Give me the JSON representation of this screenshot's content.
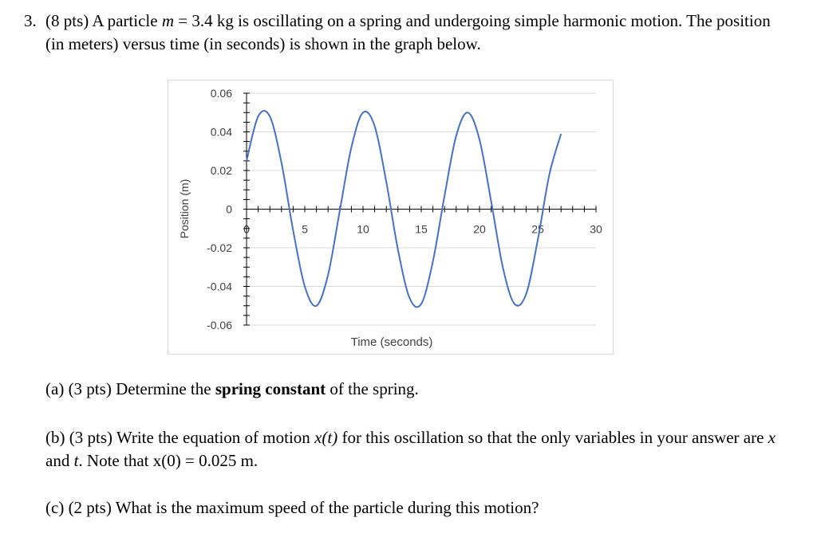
{
  "problem": {
    "number": "3.",
    "points": "(8 pts)",
    "intro_a": "A particle",
    "mass_var": "m",
    "mass_eq": "= 3.4 kg",
    "intro_b": "is oscillating on a spring and undergoing simple harmonic motion. The position (in meters) versus time (in seconds) is shown in the graph below."
  },
  "parts": {
    "a": {
      "label": "(a)",
      "points": "(3 pts)",
      "text_pre": "Determine the",
      "bold": "spring constant",
      "text_post": "of the spring."
    },
    "b": {
      "label": "(b)",
      "points": "(3 pts)",
      "text_1": "Write the equation of motion",
      "func": "x(t)",
      "text_2": "for this oscillation so that the only variables in your answer are",
      "var_x": "x",
      "and": "and",
      "var_t": "t",
      "text_3": ". Note that",
      "init": "x(0)",
      "init_val": "= 0.025 m."
    },
    "c": {
      "label": "(c)",
      "points": "(2 pts)",
      "text": "What is the maximum speed of the particle during this motion?"
    }
  },
  "chart_data": {
    "type": "line",
    "xlabel": "Time (seconds)",
    "ylabel": "Position (m)",
    "xlim": [
      0,
      30
    ],
    "ylim": [
      -0.06,
      0.06
    ],
    "x_ticks": [
      "0",
      "5",
      "10",
      "15",
      "20",
      "25",
      "30"
    ],
    "y_ticks": [
      "0.06",
      "0.04",
      "0.02",
      "0",
      "-0.02",
      "-0.04",
      "-0.06"
    ],
    "grid": true,
    "series": [
      {
        "color": "#4472c4",
        "x": [
          0,
          1,
          2,
          3,
          4,
          5,
          6,
          7,
          8,
          9,
          10,
          11,
          12,
          13,
          14,
          15,
          16,
          17,
          18,
          19,
          20,
          21,
          22,
          23,
          24,
          25,
          26,
          27
        ],
        "y": [
          0.025,
          0.048,
          0.048,
          0.024,
          -0.011,
          -0.04,
          -0.05,
          -0.034,
          -0.001,
          0.032,
          0.05,
          0.043,
          0.014,
          -0.021,
          -0.046,
          -0.049,
          -0.027,
          0.007,
          0.038,
          0.05,
          0.036,
          0.004,
          -0.03,
          -0.049,
          -0.044,
          -0.016,
          0.018,
          0.039
        ]
      }
    ]
  },
  "colors": {
    "line": "#4472c4",
    "grid": "#d9d9d9",
    "axis": "#000000",
    "tick_label": "#404040"
  }
}
